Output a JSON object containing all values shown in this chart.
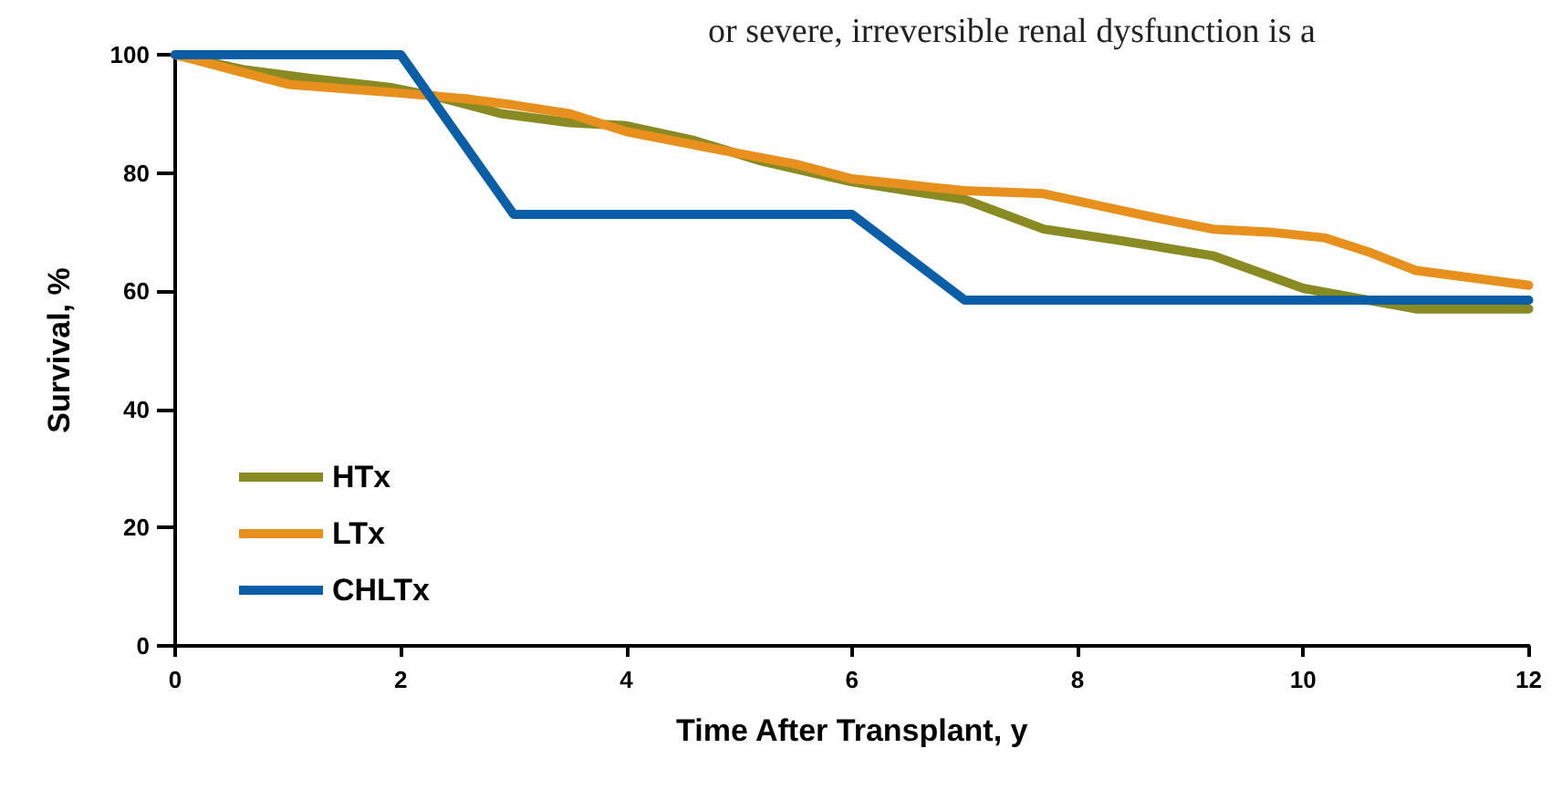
{
  "chart_data": {
    "type": "line",
    "xlabel": "Time After Transplant, y",
    "ylabel": "Survival, %",
    "annotations": [
      "or severe, irreversible renal dysfunction is a"
    ],
    "xlim": [
      0,
      12
    ],
    "xticks": [
      0,
      2,
      4,
      6,
      8,
      10,
      12
    ],
    "ylim": [
      0,
      100
    ],
    "yticks": [
      0,
      20,
      40,
      60,
      80,
      100
    ],
    "grid": false,
    "legend": "bottom left",
    "marker": "none",
    "line_style": "solid",
    "series": [
      {
        "name": "HTx",
        "color": "#8a8a22",
        "x": [
          0,
          0.6,
          1.2,
          1.9,
          2.3,
          2.9,
          3.5,
          4,
          4.6,
          5.2,
          6,
          7,
          7.7,
          8.4,
          9.2,
          10,
          11,
          12
        ],
        "values": [
          100,
          97.5,
          96,
          94.5,
          93,
          90,
          88.5,
          88,
          85.5,
          82,
          78.5,
          75.5,
          70.5,
          68.5,
          66,
          60.5,
          57,
          57
        ]
      },
      {
        "name": "LTx",
        "color": "#e8901e",
        "x": [
          0,
          0.4,
          1,
          2,
          2.6,
          3,
          3.5,
          4,
          4.8,
          5.5,
          6,
          6.5,
          7,
          7.7,
          8.3,
          8.8,
          9.2,
          9.7,
          10.2,
          10.6,
          11,
          12
        ],
        "values": [
          100,
          98,
          95,
          93.5,
          92.5,
          91.5,
          90,
          87,
          84,
          81.5,
          79,
          78,
          77,
          76.5,
          74,
          72,
          70.5,
          70,
          69,
          66.5,
          63.5,
          61
        ]
      },
      {
        "name": "CHLTx",
        "color": "#0a5ea8",
        "x": [
          0,
          2,
          3,
          6,
          7,
          12
        ],
        "values": [
          100,
          100,
          73,
          73,
          58.5,
          58.5
        ]
      }
    ]
  }
}
